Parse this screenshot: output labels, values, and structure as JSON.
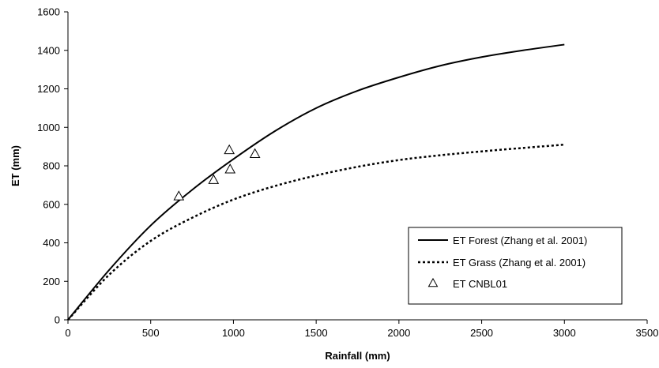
{
  "chart_data": {
    "type": "line",
    "xlabel": "Rainfall (mm)",
    "ylabel": "ET (mm)",
    "xlim": [
      0,
      3500
    ],
    "ylim": [
      0,
      1600
    ],
    "xticks": [
      0,
      500,
      1000,
      1500,
      2000,
      2500,
      3000,
      3500
    ],
    "yticks": [
      0,
      200,
      400,
      600,
      800,
      1000,
      1200,
      1400,
      1600
    ],
    "grid": false,
    "legend_position": "bottom-right",
    "series": [
      {
        "name": "ET Forest (Zhang et al. 2001)",
        "style": "solid",
        "color": "#000000",
        "x": [
          0,
          250,
          500,
          750,
          1000,
          1250,
          1500,
          1750,
          2000,
          2250,
          2500,
          2750,
          3000
        ],
        "y": [
          0,
          260,
          490,
          675,
          835,
          980,
          1100,
          1190,
          1260,
          1320,
          1365,
          1400,
          1430
        ]
      },
      {
        "name": "ET Grass (Zhang et al. 2001)",
        "style": "dashed",
        "color": "#000000",
        "x": [
          0,
          250,
          500,
          750,
          1000,
          1250,
          1500,
          1750,
          2000,
          2250,
          2500,
          2750,
          3000
        ],
        "y": [
          0,
          235,
          410,
          530,
          625,
          695,
          750,
          795,
          830,
          855,
          875,
          893,
          910
        ]
      },
      {
        "name": "ET CNBL01",
        "style": "markers",
        "marker": "open-triangle",
        "color": "#000000",
        "x": [
          670,
          880,
          975,
          980,
          1130
        ],
        "y": [
          640,
          725,
          880,
          780,
          860
        ]
      }
    ]
  }
}
